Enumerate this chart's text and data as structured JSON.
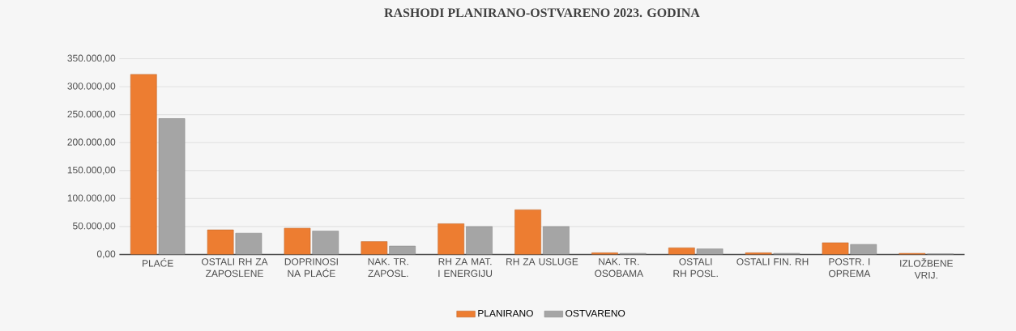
{
  "chart_data": {
    "type": "bar",
    "title": "RASHODI PLANIRANO-OSTVARENO 2023. GODINA",
    "categories": [
      "PLAĆE",
      "OSTALI RH ZA ZAPOSLENE",
      "DOPRINOSI NA PLAĆE",
      "NAK. TR. ZAPOSL.",
      "RH ZA MAT. I ENERGIJU",
      "RH ZA USLUGE",
      "NAK. TR. OSOBAMA",
      "OSTALI RH POSL.",
      "OSTALI FIN. RH",
      "POSTR. I OPREMA",
      "IZLOŽBENE VRIJ."
    ],
    "series": [
      {
        "name": "PLANIRANO",
        "color": "#ed7d31",
        "values": [
          322000,
          44000,
          47000,
          23000,
          55000,
          80000,
          3000,
          12000,
          3000,
          21000,
          2000
        ]
      },
      {
        "name": "OSTVARENO",
        "color": "#a5a5a5",
        "values": [
          243000,
          38000,
          42000,
          15000,
          50000,
          50000,
          2000,
          10000,
          2000,
          18000,
          1000
        ]
      }
    ],
    "ylim": [
      0,
      350000
    ],
    "yticks": [
      {
        "value": 0,
        "label": "0,00"
      },
      {
        "value": 50000,
        "label": "50.000,00"
      },
      {
        "value": 100000,
        "label": "100.000,00"
      },
      {
        "value": 150000,
        "label": "150.000,00"
      },
      {
        "value": 200000,
        "label": "200.000,00"
      },
      {
        "value": 250000,
        "label": "250.000,00"
      },
      {
        "value": 300000,
        "label": "300.000,00"
      },
      {
        "value": 350000,
        "label": "350.000,00"
      }
    ],
    "grid": "y",
    "legend": "bottom"
  }
}
